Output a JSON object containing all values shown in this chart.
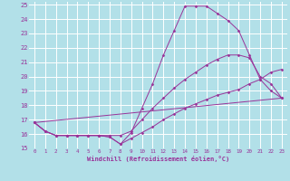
{
  "background_color": "#b2e0e8",
  "grid_color": "#ffffff",
  "line_color": "#993399",
  "xlabel": "Windchill (Refroidissement éolien,°C)",
  "xlim": [
    -0.5,
    23.5
  ],
  "ylim": [
    15,
    25.2
  ],
  "yticks": [
    15,
    16,
    17,
    18,
    19,
    20,
    21,
    22,
    23,
    24,
    25
  ],
  "xticks": [
    0,
    1,
    2,
    3,
    4,
    5,
    6,
    7,
    8,
    9,
    10,
    11,
    12,
    13,
    14,
    15,
    16,
    17,
    18,
    19,
    20,
    21,
    22,
    23
  ],
  "series": [
    {
      "x": [
        0,
        1,
        2,
        3,
        4,
        5,
        6,
        7,
        8,
        9,
        10,
        11,
        12,
        13,
        14,
        15,
        16,
        17,
        18,
        19,
        20,
        21,
        22,
        23
      ],
      "y": [
        16.8,
        16.2,
        15.9,
        15.9,
        15.9,
        15.9,
        15.9,
        15.8,
        15.3,
        16.1,
        17.8,
        19.5,
        21.5,
        23.2,
        24.9,
        24.9,
        24.9,
        24.4,
        23.9,
        23.2,
        21.5,
        19.8,
        19.0,
        18.5
      ]
    },
    {
      "x": [
        0,
        1,
        2,
        3,
        4,
        5,
        6,
        7,
        8,
        9,
        10,
        11,
        12,
        13,
        14,
        15,
        16,
        17,
        18,
        19,
        20,
        21,
        22,
        23
      ],
      "y": [
        16.8,
        16.2,
        15.9,
        15.9,
        15.9,
        15.9,
        15.9,
        15.9,
        15.9,
        16.2,
        17.0,
        17.8,
        18.5,
        19.2,
        19.8,
        20.3,
        20.8,
        21.2,
        21.5,
        21.5,
        21.3,
        20.0,
        19.5,
        18.5
      ]
    },
    {
      "x": [
        0,
        1,
        2,
        3,
        4,
        5,
        6,
        7,
        8,
        9,
        10,
        11,
        12,
        13,
        14,
        15,
        16,
        17,
        18,
        19,
        20,
        21,
        22,
        23
      ],
      "y": [
        16.8,
        16.2,
        15.9,
        15.9,
        15.9,
        15.9,
        15.9,
        15.8,
        15.3,
        15.7,
        16.1,
        16.5,
        17.0,
        17.4,
        17.8,
        18.1,
        18.4,
        18.7,
        18.9,
        19.1,
        19.5,
        19.8,
        20.3,
        20.5
      ]
    },
    {
      "x": [
        0,
        23
      ],
      "y": [
        16.8,
        18.5
      ],
      "no_marker": true
    }
  ]
}
